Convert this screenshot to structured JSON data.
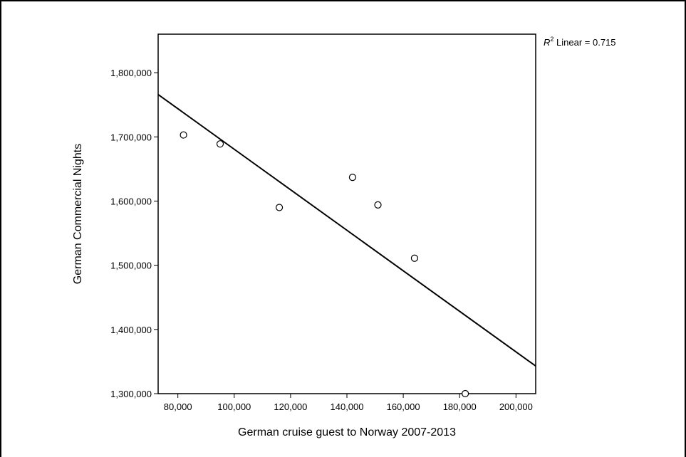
{
  "chart_data": {
    "type": "scatter",
    "xlabel": "German cruise guest to Norway 2007-2013",
    "ylabel": "German Commercial Nights",
    "xlim": [
      73000,
      207000
    ],
    "ylim": [
      1300000,
      1860000
    ],
    "x_ticks": [
      80000,
      100000,
      120000,
      140000,
      160000,
      180000,
      200000
    ],
    "x_tick_labels": [
      "80,000",
      "100,000",
      "120,000",
      "140,000",
      "160,000",
      "180,000",
      "200,000"
    ],
    "y_ticks": [
      1300000,
      1400000,
      1500000,
      1600000,
      1700000,
      1800000
    ],
    "y_tick_labels": [
      "1,300,000",
      "1,400,000",
      "1,500,000",
      "1,600,000",
      "1,700,000",
      "1,800,000"
    ],
    "series": [
      {
        "points": [
          {
            "x": 82000,
            "y": 1703000
          },
          {
            "x": 95000,
            "y": 1689000
          },
          {
            "x": 116000,
            "y": 1590000
          },
          {
            "x": 142000,
            "y": 1637000
          },
          {
            "x": 151000,
            "y": 1594000
          },
          {
            "x": 164000,
            "y": 1511000
          },
          {
            "x": 182000,
            "y": 1300000
          }
        ]
      }
    ],
    "fit_line": {
      "x": [
        73000,
        207000
      ],
      "y": [
        1766000,
        1343000
      ]
    },
    "r2_annotation": {
      "prefix": "R",
      "superscript": "2",
      "text": " Linear = 0.715"
    },
    "grid": false,
    "legend": "none"
  }
}
